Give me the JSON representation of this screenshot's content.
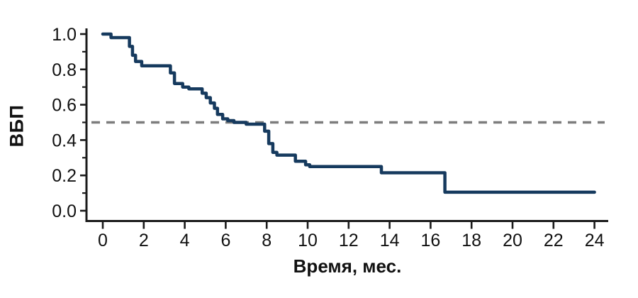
{
  "chart_data": {
    "type": "line",
    "subtype": "kaplan_meier_step_curve",
    "title": "",
    "xlabel": "Время, мес.",
    "ylabel": "ВБП",
    "xlim": [
      0,
      24
    ],
    "ylim": [
      0.0,
      1.0
    ],
    "x_ticks": [
      0,
      2,
      4,
      6,
      8,
      10,
      12,
      14,
      16,
      18,
      20,
      22,
      24
    ],
    "x_tick_labels": [
      "0",
      "2",
      "4",
      "6",
      "8",
      "10",
      "12",
      "14",
      "16",
      "18",
      "20",
      "22",
      "24"
    ],
    "y_ticks": [
      0.0,
      0.2,
      0.4,
      0.6,
      0.8,
      1.0
    ],
    "y_tick_labels": [
      "0.0",
      "0.2",
      "0.4",
      "0.6",
      "0.8",
      "1.0"
    ],
    "y_minor_ticks": [
      0.1,
      0.3,
      0.5,
      0.7,
      0.9
    ],
    "grid": false,
    "legend": "none",
    "series": [
      {
        "name": "ВБП",
        "color": "#163a5e",
        "line_width": 4.5,
        "step": "post",
        "points": [
          [
            0,
            1.0
          ],
          [
            0.4,
            0.98
          ],
          [
            1.3,
            0.93
          ],
          [
            1.45,
            0.88
          ],
          [
            1.6,
            0.845
          ],
          [
            1.9,
            0.82
          ],
          [
            3.3,
            0.78
          ],
          [
            3.5,
            0.72
          ],
          [
            3.9,
            0.7
          ],
          [
            4.2,
            0.69
          ],
          [
            4.85,
            0.665
          ],
          [
            5.05,
            0.64
          ],
          [
            5.25,
            0.61
          ],
          [
            5.45,
            0.58
          ],
          [
            5.6,
            0.545
          ],
          [
            5.85,
            0.52
          ],
          [
            6.1,
            0.51
          ],
          [
            6.4,
            0.5
          ],
          [
            7.0,
            0.49
          ],
          [
            7.9,
            0.45
          ],
          [
            8.1,
            0.38
          ],
          [
            8.3,
            0.33
          ],
          [
            8.5,
            0.315
          ],
          [
            9.4,
            0.28
          ],
          [
            9.9,
            0.26
          ],
          [
            10.1,
            0.25
          ],
          [
            13.6,
            0.215
          ],
          [
            16.7,
            0.105
          ],
          [
            24,
            0.105
          ]
        ]
      }
    ],
    "reference_line": {
      "y": 0.5,
      "style": "dashed",
      "color": "#7d7d7d",
      "width": 3.5,
      "dash": [
        12,
        9
      ]
    },
    "axis_color": "#1a1a1a"
  }
}
